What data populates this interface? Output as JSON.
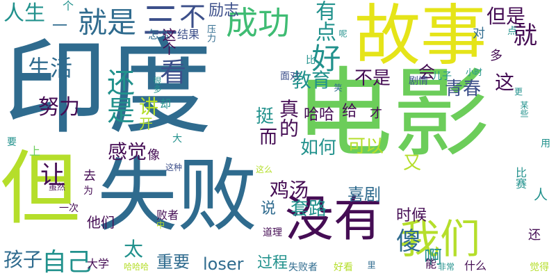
{
  "palette": {
    "dark_purple": "#450d54",
    "indigo": "#3c4f8a",
    "teal_blue": "#2f6b8e",
    "teal": "#21918c",
    "green": "#3fbc73",
    "light_green": "#6ccd5a",
    "yellow_green": "#b5de2b",
    "yellow": "#e5e419"
  },
  "words": [
    {
      "text": "印度",
      "color": "teal_blue"
    },
    {
      "text": "电影",
      "color": "light_green"
    },
    {
      "text": "故事",
      "color": "yellow"
    },
    {
      "text": "失败",
      "color": "teal_blue"
    },
    {
      "text": "但",
      "color": "yellow_green"
    },
    {
      "text": "没有",
      "color": "dark_purple"
    },
    {
      "text": "我们",
      "color": "yellow_green"
    },
    {
      "text": "成功",
      "color": "green"
    },
    {
      "text": "就是",
      "color": "teal_blue"
    },
    {
      "text": "人生",
      "color": "teal"
    },
    {
      "text": "三",
      "color": "indigo"
    },
    {
      "text": "不",
      "color": "indigo"
    },
    {
      "text": "励志",
      "color": "indigo"
    },
    {
      "text": "个",
      "color": "teal"
    },
    {
      "text": "有点",
      "color": "teal"
    },
    {
      "text": "好",
      "color": "teal"
    },
    {
      "text": "就",
      "color": "dark_purple"
    },
    {
      "text": "但是",
      "color": "dark_purple"
    },
    {
      "text": "对",
      "color": "teal_blue"
    },
    {
      "text": "一",
      "color": "teal_blue"
    },
    {
      "text": "怎么",
      "color": "teal_blue"
    },
    {
      "text": "结果",
      "color": "indigo"
    },
    {
      "text": "压力",
      "color": "teal_blue"
    },
    {
      "text": "呢",
      "color": "teal"
    },
    {
      "text": "这个",
      "color": "dark_purple"
    },
    {
      "text": "生活",
      "color": "teal_blue"
    },
    {
      "text": "看",
      "color": "indigo"
    },
    {
      "text": "还是",
      "color": "teal"
    },
    {
      "text": "教育",
      "color": "teal"
    },
    {
      "text": "不是",
      "color": "dark_purple"
    },
    {
      "text": "会",
      "color": "dark_purple"
    },
    {
      "text": "青春",
      "color": "indigo"
    },
    {
      "text": "这",
      "color": "dark_purple"
    },
    {
      "text": "儿子",
      "color": "teal"
    },
    {
      "text": "小时",
      "color": "teal"
    },
    {
      "text": "真的",
      "color": "dark_purple"
    },
    {
      "text": "面对",
      "color": "indigo"
    },
    {
      "text": "剧情",
      "color": "indigo"
    },
    {
      "text": "多",
      "color": "dark_purple"
    },
    {
      "text": "点",
      "color": "teal"
    },
    {
      "text": "比",
      "color": "teal"
    },
    {
      "text": "很多",
      "color": "teal"
    },
    {
      "text": "却",
      "color": "teal"
    },
    {
      "text": "笑",
      "color": "teal_blue"
    },
    {
      "text": "更",
      "color": "teal"
    },
    {
      "text": "某些",
      "color": "teal"
    },
    {
      "text": "努力",
      "color": "dark_purple"
    },
    {
      "text": "讲",
      "color": "yellow_green"
    },
    {
      "text": "开",
      "color": "yellow_green"
    },
    {
      "text": "挺",
      "color": "teal"
    },
    {
      "text": "哈哈",
      "color": "dark_purple"
    },
    {
      "text": "给",
      "color": "dark_purple"
    },
    {
      "text": "才",
      "color": "dark_purple"
    },
    {
      "text": "而",
      "color": "dark_purple"
    },
    {
      "text": "如何",
      "color": "teal"
    },
    {
      "text": "可以",
      "color": "yellow_green"
    },
    {
      "text": "又",
      "color": "yellow_green"
    },
    {
      "text": "感觉",
      "color": "dark_purple"
    },
    {
      "text": "让",
      "color": "dark_purple"
    },
    {
      "text": "像",
      "color": "dark_purple"
    },
    {
      "text": "大",
      "color": "teal"
    },
    {
      "text": "上",
      "color": "light_green"
    },
    {
      "text": "要",
      "color": "teal"
    },
    {
      "text": "用",
      "color": "teal"
    },
    {
      "text": "去",
      "color": "dark_purple"
    },
    {
      "text": "这种",
      "color": "indigo"
    },
    {
      "text": "这么",
      "color": "yellow_green"
    },
    {
      "text": "鸡汤",
      "color": "dark_purple"
    },
    {
      "text": "套路",
      "color": "teal"
    },
    {
      "text": "喜剧",
      "color": "teal_blue"
    },
    {
      "text": "人",
      "color": "teal"
    },
    {
      "text": "比赛",
      "color": "teal"
    },
    {
      "text": "虽然",
      "color": "dark_purple"
    },
    {
      "text": "为",
      "color": "dark_purple"
    },
    {
      "text": "一次",
      "color": "dark_purple"
    },
    {
      "text": "败者",
      "color": "dark_purple"
    },
    {
      "text": "他们",
      "color": "dark_purple"
    },
    {
      "text": "中",
      "color": "yellow_green"
    },
    {
      "text": "说",
      "color": "teal_blue"
    },
    {
      "text": "时候",
      "color": "dark_purple"
    },
    {
      "text": "道理",
      "color": "dark_purple"
    },
    {
      "text": "傻",
      "color": "teal_blue"
    },
    {
      "text": "啊",
      "color": "teal"
    },
    {
      "text": "还",
      "color": "dark_purple"
    },
    {
      "text": "孩子",
      "color": "teal_blue"
    },
    {
      "text": "自己",
      "color": "teal"
    },
    {
      "text": "太",
      "color": "teal"
    },
    {
      "text": "大学",
      "color": "dark_purple"
    },
    {
      "text": "重要",
      "color": "teal_blue"
    },
    {
      "text": "loser",
      "color": "teal_blue"
    },
    {
      "text": "过程",
      "color": "teal"
    },
    {
      "text": "哈哈哈",
      "color": "yellow_green"
    },
    {
      "text": "失败者",
      "color": "teal_blue"
    },
    {
      "text": "好看",
      "color": "yellow_green"
    },
    {
      "text": "里",
      "color": "teal_blue"
    },
    {
      "text": "能",
      "color": "dark_purple"
    },
    {
      "text": "非常",
      "color": "teal"
    },
    {
      "text": "什么",
      "color": "dark_purple"
    },
    {
      "text": "觉得",
      "color": "yellow_green"
    }
  ]
}
